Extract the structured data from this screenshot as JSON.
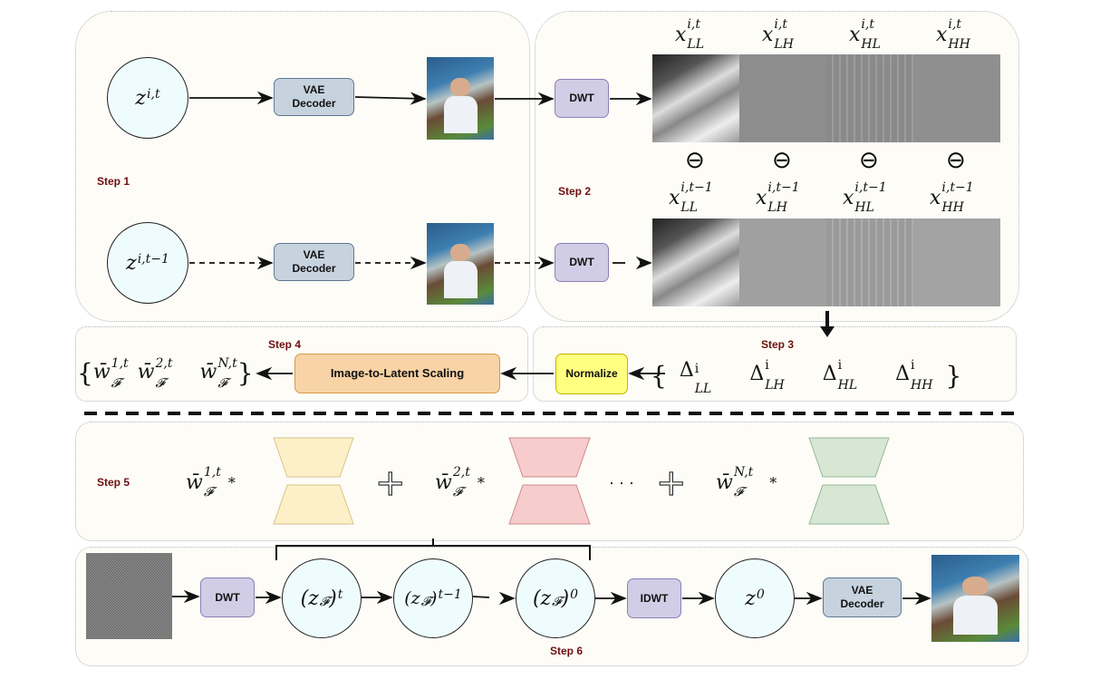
{
  "steps": {
    "s1": "Step 1",
    "s2": "Step 2",
    "s3": "Step 3",
    "s4": "Step 4",
    "s5": "Step 5",
    "s6": "Step 6"
  },
  "boxes": {
    "vae_decoder": "VAE Decoder",
    "dwt": "DWT",
    "idwt": "IDWT",
    "normalize": "Normalize",
    "scaling": "Image-to-Latent Scaling"
  },
  "latents": {
    "z_t": {
      "base": "z",
      "sup": "i,t"
    },
    "z_t1": {
      "base": "z",
      "sup": "i,t−1"
    },
    "z0": {
      "base": "z",
      "sup": "0"
    }
  },
  "wavelet_labels_t": [
    {
      "base": "x",
      "sup": "i,t",
      "sub": "LL"
    },
    {
      "base": "x",
      "sup": "i,t",
      "sub": "LH"
    },
    {
      "base": "x",
      "sup": "i,t",
      "sub": "HL"
    },
    {
      "base": "x",
      "sup": "i,t",
      "sub": "HH"
    }
  ],
  "wavelet_labels_t1": [
    {
      "base": "x",
      "sup": "i,t−1",
      "sub": "LL"
    },
    {
      "base": "x",
      "sup": "i,t−1",
      "sub": "LH"
    },
    {
      "base": "x",
      "sup": "i,t−1",
      "sub": "HL"
    },
    {
      "base": "x",
      "sup": "i,t−1",
      "sub": "HH"
    }
  ],
  "minus_symbol": "⊖",
  "deltas": {
    "open": "{",
    "close": "}",
    "items": [
      {
        "base": "Δ",
        "sup": "i",
        "sub": "LL"
      },
      {
        "base": "Δ",
        "sup": "i",
        "sub": "LH"
      },
      {
        "base": "Δ",
        "sup": "i",
        "sub": "HL"
      },
      {
        "base": "Δ",
        "sup": "i",
        "sub": "HH"
      }
    ]
  },
  "weights": {
    "open": "{",
    "close": "}",
    "items": [
      {
        "base": "w̄",
        "sup": "1,t",
        "sub": "𝓕"
      },
      {
        "base": "w̄",
        "sup": "2,t",
        "sub": "𝓕"
      },
      {
        "base": "w̄",
        "sup": "N,t",
        "sub": "𝓕"
      }
    ]
  },
  "step5": {
    "times": "*",
    "plus": "+",
    "ellipsis": "· · ·"
  },
  "denoise": [
    {
      "pre": "(z",
      "sub": "𝓕",
      "post": ")",
      "sup": "t"
    },
    {
      "pre": "(z",
      "sub": "𝓕",
      "post": ")",
      "sup": "t−1"
    },
    {
      "pre": "(z",
      "sub": "𝓕",
      "post": ")",
      "sup": "0"
    }
  ],
  "colors": {
    "step_label": "#6e1010",
    "vae": "#c6d2de",
    "dwt": "#d1cde6",
    "normalize": "#ffff80",
    "scaling": "#f8d3a5",
    "latent_circle": "#effcfd",
    "unet_yellow": "#fdf0c8",
    "unet_pink": "#f6cccc",
    "unet_green": "#d6e7d4"
  }
}
